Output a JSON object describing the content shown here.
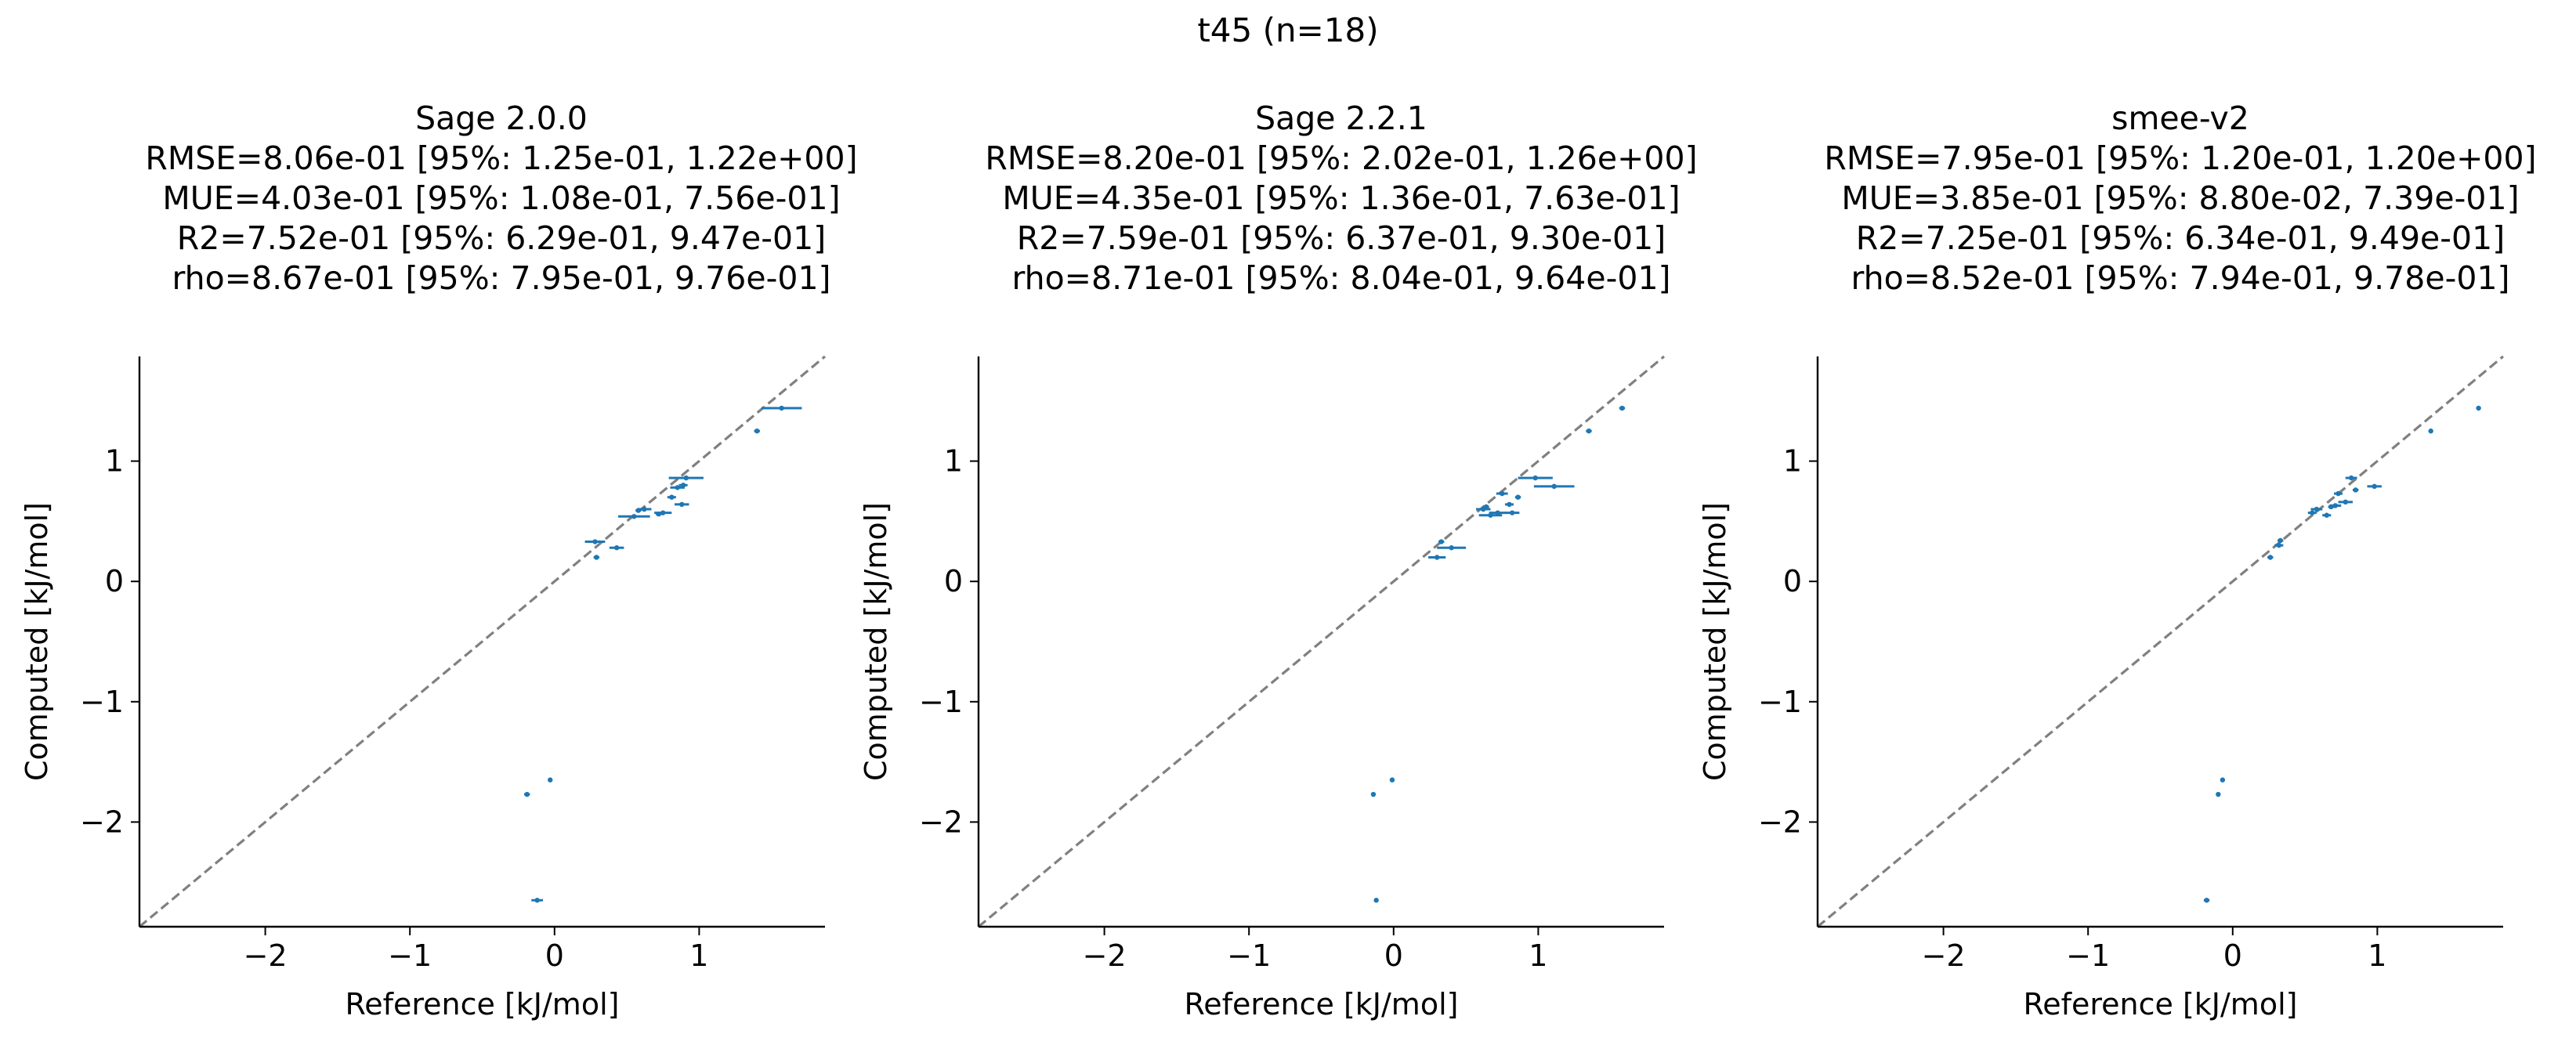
{
  "suptitle": "t45 (n=18)",
  "colors": {
    "points": "#1f77b4",
    "diagonal": "#808080",
    "axes": "#000000"
  },
  "chart_data": [
    {
      "type": "scatter",
      "title": "Sage 2.0.0",
      "stats": [
        "RMSE=8.06e-01 [95%: 1.25e-01, 1.22e+00]",
        "MUE=4.03e-01 [95%: 1.08e-01, 7.56e-01]",
        "R2=7.52e-01 [95%: 6.29e-01, 9.47e-01]",
        "rho=8.67e-01 [95%: 7.95e-01, 9.76e-01]"
      ],
      "xlabel": "Reference [kJ/mol]",
      "ylabel": "Computed [kJ/mol]",
      "xlim": [
        -2.87,
        1.87
      ],
      "ylim": [
        -2.87,
        1.87
      ],
      "xticks": [
        -2,
        -1,
        0,
        1
      ],
      "yticks": [
        -2,
        -1,
        0,
        1
      ],
      "diagonal": true,
      "grid": false,
      "points": [
        {
          "x": -0.19,
          "y": -1.77,
          "xerr": 0.02
        },
        {
          "x": -0.12,
          "y": -2.65,
          "xerr": 0.04
        },
        {
          "x": -0.03,
          "y": -1.65,
          "xerr": 0.01
        },
        {
          "x": 0.28,
          "y": 0.33,
          "xerr": 0.07
        },
        {
          "x": 0.29,
          "y": 0.2,
          "xerr": 0.02
        },
        {
          "x": 0.43,
          "y": 0.28,
          "xerr": 0.05
        },
        {
          "x": 0.55,
          "y": 0.54,
          "xerr": 0.11
        },
        {
          "x": 0.62,
          "y": 0.6,
          "xerr": 0.05
        },
        {
          "x": 0.75,
          "y": 0.57,
          "xerr": 0.06
        },
        {
          "x": 0.81,
          "y": 0.7,
          "xerr": 0.03
        },
        {
          "x": 0.85,
          "y": 0.78,
          "xerr": 0.05
        },
        {
          "x": 0.88,
          "y": 0.64,
          "xerr": 0.05
        },
        {
          "x": 0.89,
          "y": 0.8,
          "xerr": 0.03
        },
        {
          "x": 0.91,
          "y": 0.86,
          "xerr": 0.12
        },
        {
          "x": 1.4,
          "y": 1.25,
          "xerr": 0.02
        },
        {
          "x": 1.57,
          "y": 1.44,
          "xerr": 0.14
        },
        {
          "x": 0.72,
          "y": 0.56,
          "xerr": 0.02
        },
        {
          "x": 0.58,
          "y": 0.59,
          "xerr": 0.02
        }
      ]
    },
    {
      "type": "scatter",
      "title": "Sage 2.2.1",
      "stats": [
        "RMSE=8.20e-01 [95%: 2.02e-01, 1.26e+00]",
        "MUE=4.35e-01 [95%: 1.36e-01, 7.63e-01]",
        "R2=7.59e-01 [95%: 6.37e-01, 9.30e-01]",
        "rho=8.71e-01 [95%: 8.04e-01, 9.64e-01]"
      ],
      "xlabel": "Reference [kJ/mol]",
      "ylabel": "Computed [kJ/mol]",
      "xlim": [
        -2.87,
        1.87
      ],
      "ylim": [
        -2.87,
        1.87
      ],
      "xticks": [
        -2,
        -1,
        0,
        1
      ],
      "yticks": [
        -2,
        -1,
        0,
        1
      ],
      "diagonal": true,
      "grid": false,
      "points": [
        {
          "x": -0.14,
          "y": -1.77,
          "xerr": 0.01
        },
        {
          "x": -0.12,
          "y": -2.65,
          "xerr": 0.01
        },
        {
          "x": -0.01,
          "y": -1.65,
          "xerr": 0.01
        },
        {
          "x": 0.3,
          "y": 0.2,
          "xerr": 0.06
        },
        {
          "x": 0.33,
          "y": 0.33,
          "xerr": 0.02
        },
        {
          "x": 0.4,
          "y": 0.28,
          "xerr": 0.1
        },
        {
          "x": 0.62,
          "y": 0.6,
          "xerr": 0.05
        },
        {
          "x": 0.67,
          "y": 0.55,
          "xerr": 0.08
        },
        {
          "x": 0.72,
          "y": 0.57,
          "xerr": 0.06
        },
        {
          "x": 0.75,
          "y": 0.73,
          "xerr": 0.04
        },
        {
          "x": 0.8,
          "y": 0.64,
          "xerr": 0.03
        },
        {
          "x": 0.82,
          "y": 0.57,
          "xerr": 0.05
        },
        {
          "x": 0.98,
          "y": 0.86,
          "xerr": 0.12
        },
        {
          "x": 1.11,
          "y": 0.79,
          "xerr": 0.14
        },
        {
          "x": 1.35,
          "y": 1.25,
          "xerr": 0.02
        },
        {
          "x": 1.58,
          "y": 1.44,
          "xerr": 0.02
        },
        {
          "x": 0.86,
          "y": 0.7,
          "xerr": 0.02
        },
        {
          "x": 0.64,
          "y": 0.62,
          "xerr": 0.02
        }
      ]
    },
    {
      "type": "scatter",
      "title": "smee-v2",
      "stats": [
        "RMSE=7.95e-01 [95%: 1.20e-01, 1.20e+00]",
        "MUE=3.85e-01 [95%: 8.80e-02, 7.39e-01]",
        "R2=7.25e-01 [95%: 6.34e-01, 9.49e-01]",
        "rho=8.52e-01 [95%: 7.94e-01, 9.78e-01]"
      ],
      "xlabel": "Reference [kJ/mol]",
      "ylabel": "Computed [kJ/mol]",
      "xlim": [
        -2.87,
        1.87
      ],
      "ylim": [
        -2.87,
        1.87
      ],
      "xticks": [
        -2,
        -1,
        0,
        1
      ],
      "yticks": [
        -2,
        -1,
        0,
        1
      ],
      "diagonal": true,
      "grid": false,
      "points": [
        {
          "x": -0.18,
          "y": -2.65,
          "xerr": 0.02
        },
        {
          "x": -0.1,
          "y": -1.77,
          "xerr": 0.01
        },
        {
          "x": -0.07,
          "y": -1.65,
          "xerr": 0.01
        },
        {
          "x": 0.26,
          "y": 0.2,
          "xerr": 0.02
        },
        {
          "x": 0.32,
          "y": 0.3,
          "xerr": 0.03
        },
        {
          "x": 0.33,
          "y": 0.34,
          "xerr": 0.02
        },
        {
          "x": 0.55,
          "y": 0.57,
          "xerr": 0.03
        },
        {
          "x": 0.58,
          "y": 0.6,
          "xerr": 0.04
        },
        {
          "x": 0.65,
          "y": 0.55,
          "xerr": 0.03
        },
        {
          "x": 0.71,
          "y": 0.63,
          "xerr": 0.04
        },
        {
          "x": 0.73,
          "y": 0.73,
          "xerr": 0.03
        },
        {
          "x": 0.78,
          "y": 0.66,
          "xerr": 0.05
        },
        {
          "x": 0.82,
          "y": 0.86,
          "xerr": 0.04
        },
        {
          "x": 0.85,
          "y": 0.76,
          "xerr": 0.02
        },
        {
          "x": 0.98,
          "y": 0.79,
          "xerr": 0.05
        },
        {
          "x": 1.37,
          "y": 1.25,
          "xerr": 0.01
        },
        {
          "x": 1.7,
          "y": 1.44,
          "xerr": 0.01
        },
        {
          "x": 0.68,
          "y": 0.62,
          "xerr": 0.02
        }
      ]
    }
  ]
}
